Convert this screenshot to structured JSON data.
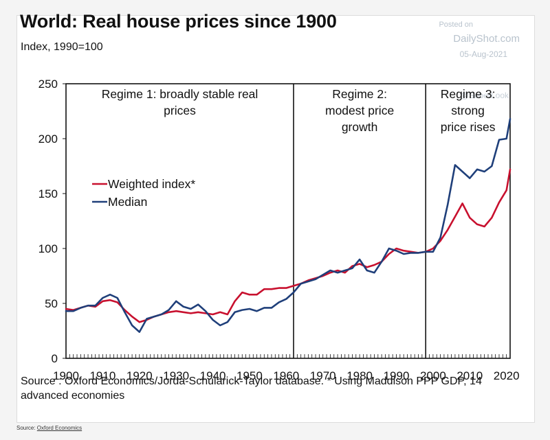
{
  "header": {
    "title": "World: Real house prices since 1900",
    "subtitle": "Index, 1990=100"
  },
  "watermark": {
    "posted": "Posted on",
    "site": "DailyShot.com",
    "date": "05-Aug-2021",
    "handle": "@SoberLook"
  },
  "source_text": "Source : Oxford Economics/Jorda-Schularick-Taylor database.  * Using Maddison PPP GDP, 14 advanced economies",
  "footer": {
    "prefix": "Source: ",
    "link": "Oxford Economics"
  },
  "colors": {
    "weighted": "#c8102e",
    "median": "#1f3f7a"
  },
  "chart_data": {
    "type": "line",
    "title": "World: Real house prices since 1900",
    "ylabel": "Index, 1990=100",
    "xlabel": "",
    "xlim": [
      1900,
      2021
    ],
    "ylim": [
      0,
      250
    ],
    "yticks": [
      0,
      50,
      100,
      150,
      200,
      250
    ],
    "xticks": [
      1900,
      1910,
      1920,
      1930,
      1940,
      1950,
      1960,
      1970,
      1980,
      1990,
      2000,
      2010,
      2020
    ],
    "regime_boundaries": [
      1962,
      1998
    ],
    "regimes": [
      {
        "lines": [
          "Regime 1: broadly stable real",
          "prices"
        ],
        "x_center": 1931
      },
      {
        "lines": [
          "Regime 2:",
          "modest price",
          "growth"
        ],
        "x_center": 1980
      },
      {
        "lines": [
          "Regime 3:",
          "strong",
          "price rises"
        ],
        "x_center": 2009.5
      }
    ],
    "legend": {
      "position": "middle-left",
      "entries": [
        "Weighted index*",
        "Median"
      ]
    },
    "series": [
      {
        "name": "Weighted index*",
        "x": [
          1900,
          1902,
          1904,
          1906,
          1908,
          1910,
          1912,
          1914,
          1916,
          1918,
          1920,
          1922,
          1924,
          1926,
          1928,
          1930,
          1932,
          1934,
          1936,
          1938,
          1940,
          1942,
          1944,
          1946,
          1948,
          1950,
          1952,
          1954,
          1956,
          1958,
          1960,
          1962,
          1964,
          1966,
          1968,
          1970,
          1972,
          1974,
          1976,
          1978,
          1980,
          1982,
          1984,
          1986,
          1988,
          1990,
          1992,
          1994,
          1996,
          1998,
          2000,
          2002,
          2004,
          2006,
          2008,
          2010,
          2012,
          2014,
          2016,
          2018,
          2020,
          2021
        ],
        "values": [
          45,
          44,
          46,
          48,
          47,
          52,
          53,
          51,
          44,
          38,
          33,
          35,
          38,
          40,
          42,
          43,
          42,
          41,
          42,
          41,
          40,
          42,
          40,
          52,
          60,
          58,
          58,
          63,
          63,
          64,
          64,
          66,
          68,
          71,
          73,
          75,
          78,
          80,
          78,
          84,
          86,
          83,
          85,
          88,
          95,
          100,
          98,
          97,
          96,
          97,
          100,
          107,
          117,
          129,
          141,
          128,
          122,
          120,
          128,
          142,
          153,
          172
        ]
      },
      {
        "name": "Median",
        "x": [
          1900,
          1902,
          1904,
          1906,
          1908,
          1910,
          1912,
          1914,
          1916,
          1918,
          1920,
          1922,
          1924,
          1926,
          1928,
          1930,
          1932,
          1934,
          1936,
          1938,
          1940,
          1942,
          1944,
          1946,
          1948,
          1950,
          1952,
          1954,
          1956,
          1958,
          1960,
          1962,
          1964,
          1966,
          1968,
          1970,
          1972,
          1974,
          1976,
          1978,
          1980,
          1982,
          1984,
          1986,
          1988,
          1990,
          1992,
          1994,
          1996,
          1998,
          2000,
          2002,
          2004,
          2006,
          2008,
          2010,
          2012,
          2014,
          2016,
          2018,
          2020,
          2021
        ],
        "values": [
          43,
          43,
          46,
          48,
          48,
          55,
          58,
          55,
          42,
          30,
          24,
          36,
          38,
          40,
          44,
          52,
          47,
          45,
          49,
          43,
          35,
          30,
          33,
          42,
          44,
          45,
          43,
          46,
          46,
          51,
          54,
          60,
          68,
          70,
          72,
          76,
          80,
          78,
          80,
          82,
          90,
          80,
          78,
          88,
          100,
          98,
          95,
          96,
          96,
          97,
          97,
          110,
          140,
          176,
          170,
          164,
          172,
          170,
          175,
          199,
          200,
          218
        ]
      }
    ]
  }
}
